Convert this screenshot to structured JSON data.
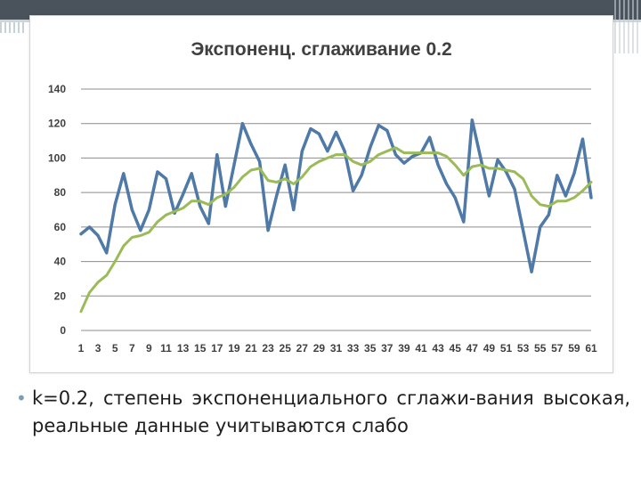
{
  "slide": {
    "bullet_text": "k=0.2, степень экспоненциального сглажи-вания высокая, реальные данные учитываются слабо",
    "bullet_marker": "•"
  },
  "colors": {
    "actual_series": "#4f79a7",
    "smoothed_series": "#9bbb59",
    "grid": "#8c8c8c"
  },
  "chart_data": {
    "type": "line",
    "title": "Экспоненц. сглаживание 0.2",
    "xlabel": "",
    "ylabel": "",
    "ylim": [
      0,
      140
    ],
    "yticks": [
      0,
      20,
      40,
      60,
      80,
      100,
      120,
      140
    ],
    "x": [
      1,
      2,
      3,
      4,
      5,
      6,
      7,
      8,
      9,
      10,
      11,
      12,
      13,
      14,
      15,
      16,
      17,
      18,
      19,
      20,
      21,
      22,
      23,
      24,
      25,
      26,
      27,
      28,
      29,
      30,
      31,
      32,
      33,
      34,
      35,
      36,
      37,
      38,
      39,
      40,
      41,
      42,
      43,
      44,
      45,
      46,
      47,
      48,
      49,
      50,
      51,
      52,
      53,
      54,
      55,
      56,
      57,
      58,
      59,
      60,
      61
    ],
    "xtick_labels": [
      "1",
      "",
      "3",
      "",
      "5",
      "",
      "7",
      "",
      "9",
      "",
      "11",
      "",
      "13",
      "",
      "15",
      "",
      "17",
      "",
      "19",
      "",
      "21",
      "",
      "23",
      "",
      "25",
      "",
      "27",
      "",
      "29",
      "",
      "31",
      "",
      "33",
      "",
      "35",
      "",
      "37",
      "",
      "39",
      "",
      "41",
      "",
      "43",
      "",
      "45",
      "",
      "47",
      "",
      "49",
      "",
      "51",
      "",
      "53",
      "",
      "55",
      "",
      "57",
      "",
      "59",
      "",
      "61"
    ],
    "grid": true,
    "legend": "none",
    "series": [
      {
        "values": [
          56,
          60,
          55,
          45,
          73,
          91,
          70,
          58,
          70,
          92,
          88,
          68,
          79,
          91,
          72,
          62,
          102,
          72,
          96,
          120,
          108,
          98,
          58,
          78,
          96,
          70,
          104,
          117,
          114,
          104,
          115,
          104,
          81,
          90,
          106,
          119,
          116,
          102,
          97,
          101,
          103,
          112,
          96,
          85,
          77,
          63,
          122,
          100,
          78,
          99,
          92,
          82,
          58,
          34,
          60,
          67,
          90,
          78,
          91,
          111,
          77
        ]
      },
      {
        "values": [
          11,
          22,
          28,
          32,
          40,
          49,
          54,
          55,
          57,
          63,
          67,
          69,
          71,
          75,
          75,
          73,
          77,
          79,
          83,
          89,
          93,
          94,
          87,
          86,
          88,
          85,
          89,
          95,
          98,
          100,
          102,
          102,
          98,
          96,
          98,
          102,
          104,
          106,
          103,
          103,
          103,
          103,
          103,
          101,
          96,
          90,
          95,
          96,
          94,
          94,
          93,
          92,
          88,
          78,
          73,
          72,
          75,
          75,
          77,
          81,
          86
        ]
      }
    ]
  }
}
